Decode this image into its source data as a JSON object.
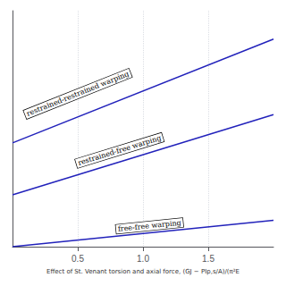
{
  "chart_data": {
    "type": "line",
    "xlabel": "Effect of St. Venant torsion and axial force, (GJ − PIp,s/A)/(π²E",
    "x": [
      0.0,
      2.0
    ],
    "series": [
      {
        "values": [
          0.0,
          0.28
        ]
      },
      {
        "values": [
          0.55,
          1.4
        ]
      },
      {
        "values": [
          1.1,
          2.2
        ]
      }
    ],
    "color": "#2222bb",
    "xlim": [
      0,
      2.0
    ],
    "ylim": [
      0,
      2.5
    ],
    "xticks": [
      0.5,
      {
        "value": 1.0,
        "label": "1.0"
      },
      1.5
    ],
    "tick_labels": "x",
    "grid": true,
    "annotations": [
      {
        "text": "free-free warping",
        "x": 1.05,
        "y": 0.22
      },
      {
        "text": "restrained-free warping",
        "x": 0.82,
        "y": 1.02
      },
      {
        "text": "restrained-restrained warping",
        "x": 0.5,
        "y": 1.62
      }
    ]
  }
}
